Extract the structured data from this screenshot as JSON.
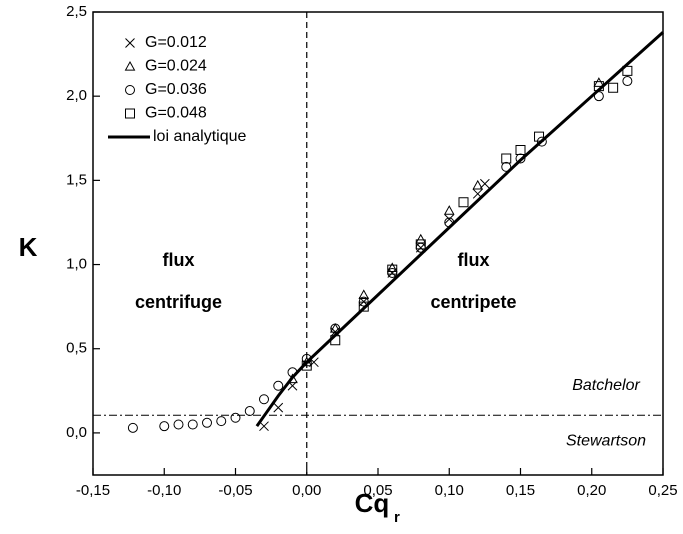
{
  "chart_data": {
    "type": "scatter",
    "xlabel": "Cq",
    "xlabel_subscript": "r",
    "ylabel": "K",
    "xlim": [
      -0.15,
      0.25
    ],
    "xticks": [
      {
        "value": -0.15,
        "label": "-0,15"
      },
      {
        "value": -0.1,
        "label": "-0,10"
      },
      {
        "value": -0.05,
        "label": "-0,05"
      },
      {
        "value": 0,
        "label": "0,00"
      },
      {
        "value": 0.05,
        "label": "0,05"
      },
      {
        "value": 0.1,
        "label": "0,10"
      },
      {
        "value": 0.15,
        "label": "0,15"
      },
      {
        "value": 0.2,
        "label": "0,20"
      },
      {
        "value": 0.25,
        "label": "0,25"
      }
    ],
    "ylim": [
      -0.25,
      2.5
    ],
    "yticks": [
      {
        "value": 0,
        "label": "0,0"
      },
      {
        "value": 0.5,
        "label": "0,5"
      },
      {
        "value": 1,
        "label": "1,0"
      },
      {
        "value": 1.5,
        "label": "1,5"
      },
      {
        "value": 2,
        "label": "2,0"
      },
      {
        "value": 2.5,
        "label": "2,5"
      }
    ],
    "vline_x": 0,
    "hline_y": 0.105,
    "annotations": [
      {
        "text": "flux",
        "x": -0.09,
        "y": 1.02
      },
      {
        "text": "centrifuge",
        "x": -0.09,
        "y": 0.77
      },
      {
        "text": "flux",
        "x": 0.117,
        "y": 1.02
      },
      {
        "text": "centripete",
        "x": 0.117,
        "y": 0.77
      },
      {
        "text": "Batchelor",
        "x": 0.21,
        "y": 0.28
      },
      {
        "text": "Stewartson",
        "x": 0.21,
        "y": -0.05
      }
    ],
    "series": [
      {
        "name": "G=0.012",
        "style": "cross",
        "color": "#000000",
        "x": [
          -0.03,
          -0.02,
          -0.01,
          0.005,
          0.02,
          0.04,
          0.06,
          0.08,
          0.1,
          0.12,
          0.125
        ],
        "values": [
          0.04,
          0.15,
          0.28,
          0.42,
          0.6,
          0.78,
          0.95,
          1.1,
          1.27,
          1.42,
          1.48
        ]
      },
      {
        "name": "G=0.024",
        "style": "triangle",
        "color": "#000000",
        "x": [
          -0.01,
          0,
          0.02,
          0.04,
          0.06,
          0.08,
          0.1,
          0.12,
          0.205
        ],
        "values": [
          0.32,
          0.42,
          0.62,
          0.82,
          0.98,
          1.15,
          1.32,
          1.47,
          2.08
        ]
      },
      {
        "name": "G=0.036",
        "style": "circle",
        "color": "#000000",
        "x": [
          -0.122,
          -0.1,
          -0.09,
          -0.08,
          -0.07,
          -0.06,
          -0.05,
          -0.04,
          -0.03,
          -0.02,
          -0.01,
          0,
          0.02,
          0.04,
          0.06,
          0.08,
          0.1,
          0.14,
          0.15,
          0.165,
          0.205,
          0.225
        ],
        "values": [
          0.03,
          0.04,
          0.05,
          0.05,
          0.06,
          0.07,
          0.09,
          0.13,
          0.2,
          0.28,
          0.36,
          0.44,
          0.62,
          0.78,
          0.95,
          1.1,
          1.25,
          1.58,
          1.63,
          1.73,
          2.0,
          2.09
        ]
      },
      {
        "name": "G=0.048",
        "style": "square",
        "color": "#000000",
        "x": [
          0,
          0.02,
          0.04,
          0.06,
          0.08,
          0.11,
          0.14,
          0.15,
          0.163,
          0.205,
          0.215,
          0.225
        ],
        "values": [
          0.4,
          0.55,
          0.75,
          0.97,
          1.12,
          1.37,
          1.63,
          1.68,
          1.76,
          2.06,
          2.05,
          2.15
        ]
      },
      {
        "name": "loi analytique",
        "style": "line",
        "color": "#000000",
        "x": [
          -0.035,
          -0.03,
          -0.02,
          -0.01,
          0,
          0.05,
          0.1,
          0.15,
          0.2,
          0.25
        ],
        "values": [
          0.04,
          0.1,
          0.22,
          0.33,
          0.42,
          0.82,
          1.22,
          1.62,
          2.0,
          2.38
        ]
      }
    ]
  }
}
